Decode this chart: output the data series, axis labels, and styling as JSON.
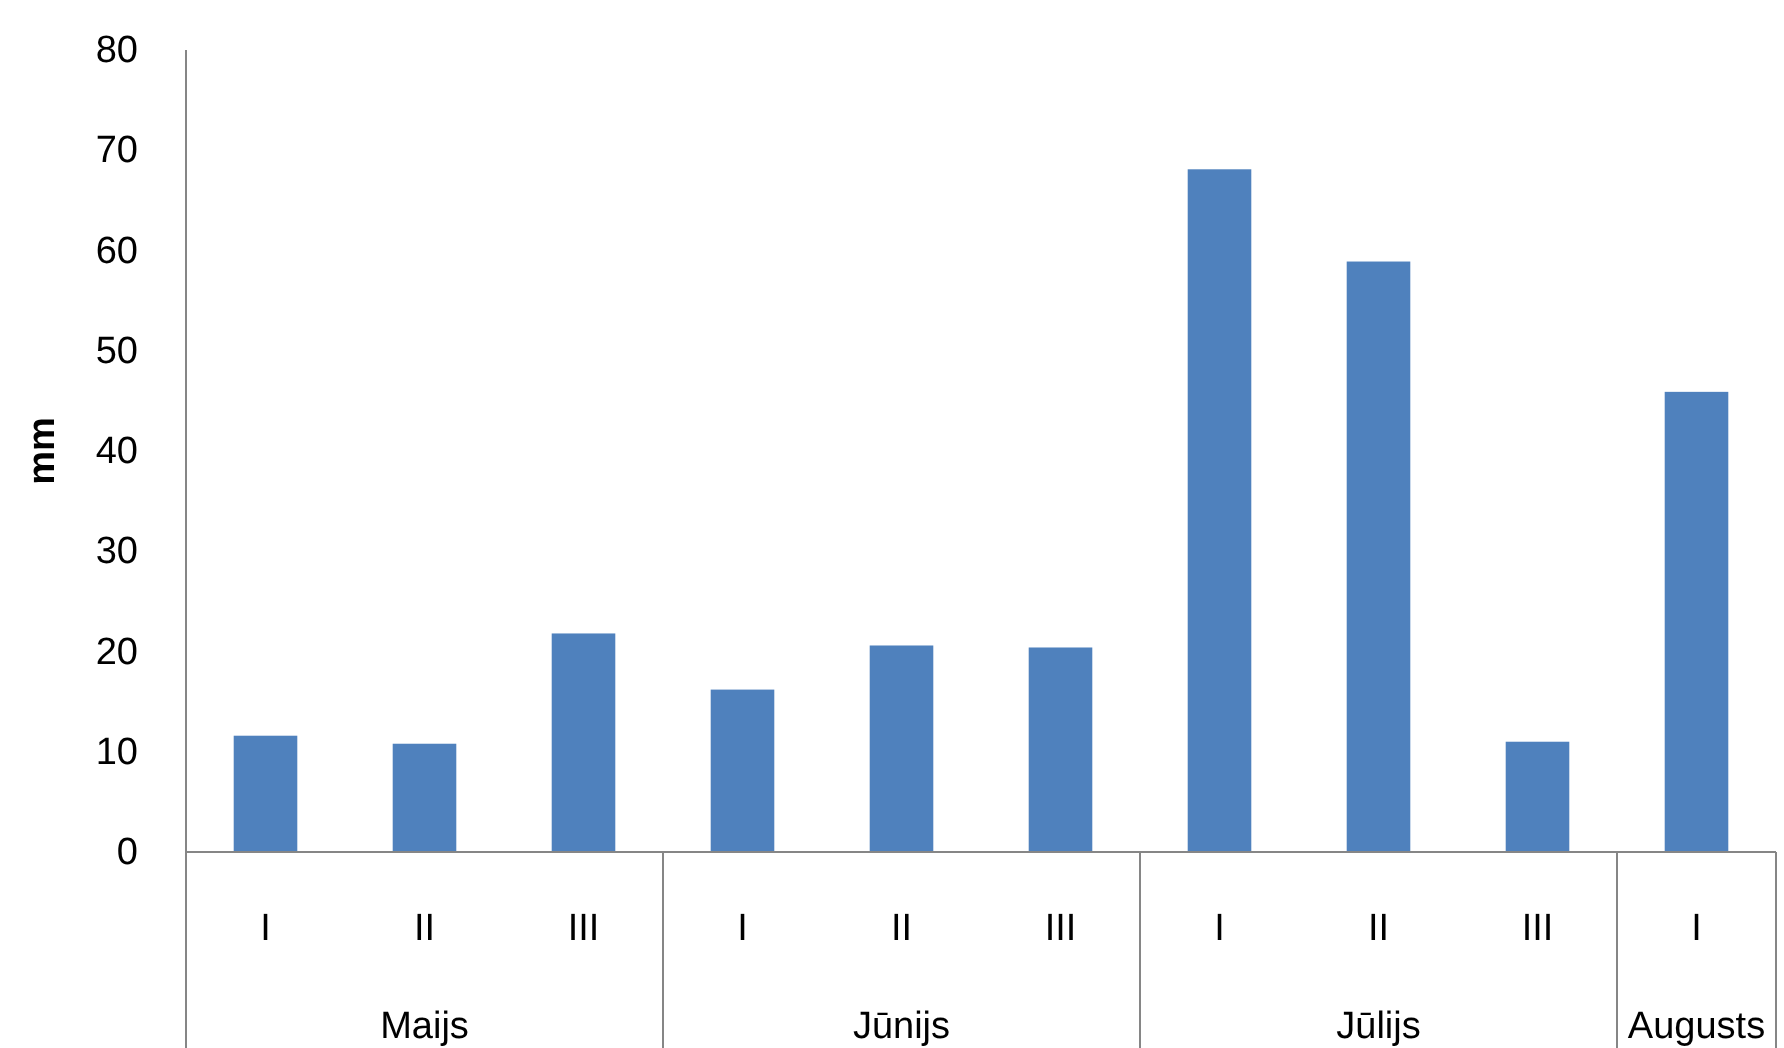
{
  "chart_data": {
    "type": "bar",
    "ylabel": "mm",
    "categories": [
      "I",
      "II",
      "III",
      "I",
      "II",
      "III",
      "I",
      "II",
      "III",
      "I"
    ],
    "values": [
      11.6,
      10.8,
      21.8,
      16.2,
      20.6,
      20.4,
      68.1,
      58.9,
      11.0,
      45.9
    ],
    "color": "#4f81bd",
    "ylim": [
      0,
      80
    ],
    "yticks": [
      0,
      10,
      20,
      30,
      40,
      50,
      60,
      70,
      80
    ],
    "annotations": [
      "Maijs",
      "Jūnijs",
      "Jūlijs",
      "Augusts"
    ],
    "grid": false
  }
}
